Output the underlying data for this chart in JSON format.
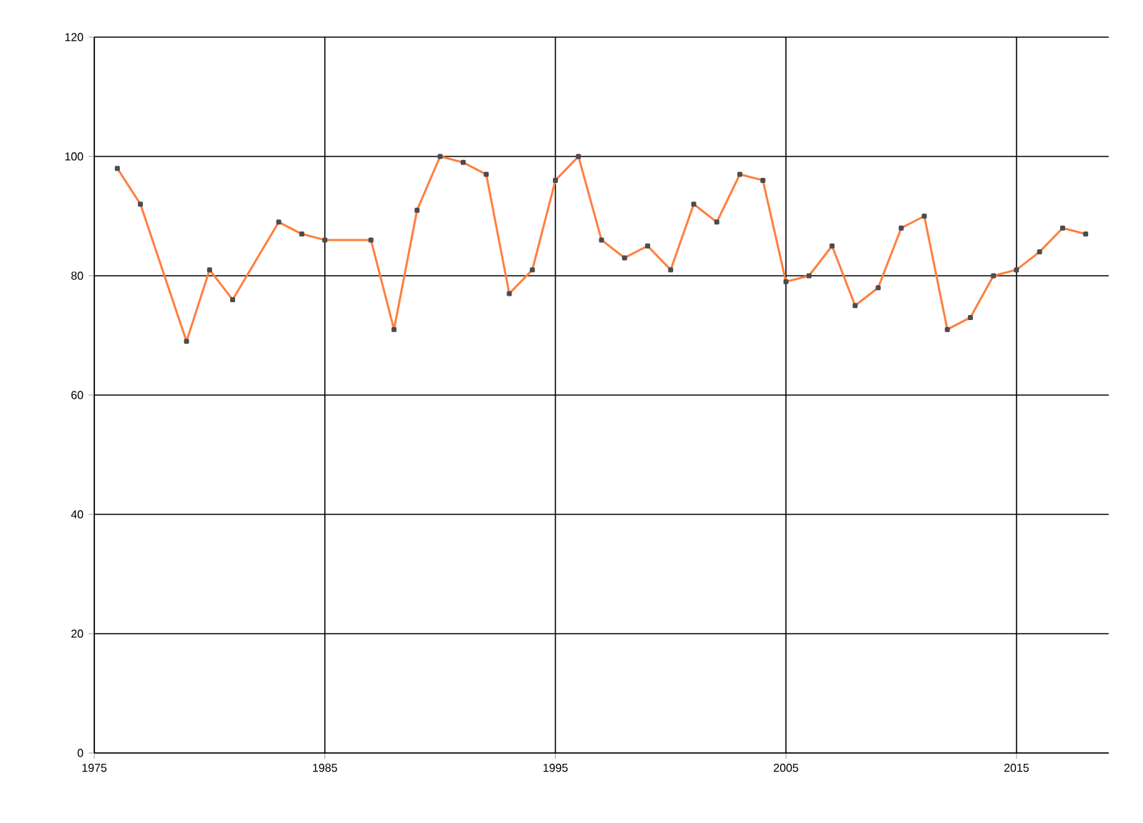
{
  "chart_data": {
    "type": "line",
    "x": [
      1976,
      1977,
      1979,
      1980,
      1981,
      1983,
      1984,
      1985,
      1987,
      1988,
      1989,
      1990,
      1991,
      1992,
      1993,
      1994,
      1995,
      1996,
      1997,
      1998,
      1999,
      2000,
      2001,
      2002,
      2003,
      2004,
      2005,
      2006,
      2007,
      2008,
      2009,
      2010,
      2011,
      2012,
      2013,
      2014,
      2015,
      2016,
      2017,
      2018
    ],
    "series": [
      {
        "color": "#ff7f3f",
        "values": [
          98,
          92,
          69,
          81,
          76,
          89,
          87,
          86,
          86,
          71,
          91,
          100,
          99,
          97,
          77,
          81,
          96,
          100,
          86,
          83,
          85,
          81,
          92,
          89,
          97,
          96,
          79,
          80,
          85,
          75,
          78,
          88,
          90,
          71,
          73,
          80,
          81,
          84,
          88,
          87
        ]
      }
    ],
    "xlim": [
      1975,
      2019
    ],
    "xticks": [
      1975,
      1985,
      1995,
      2005,
      2015
    ],
    "ylim": [
      0,
      120
    ],
    "yticks": [
      0,
      20,
      40,
      60,
      80,
      100,
      120
    ],
    "grid": true,
    "marker": "square",
    "line_style": "solid"
  }
}
